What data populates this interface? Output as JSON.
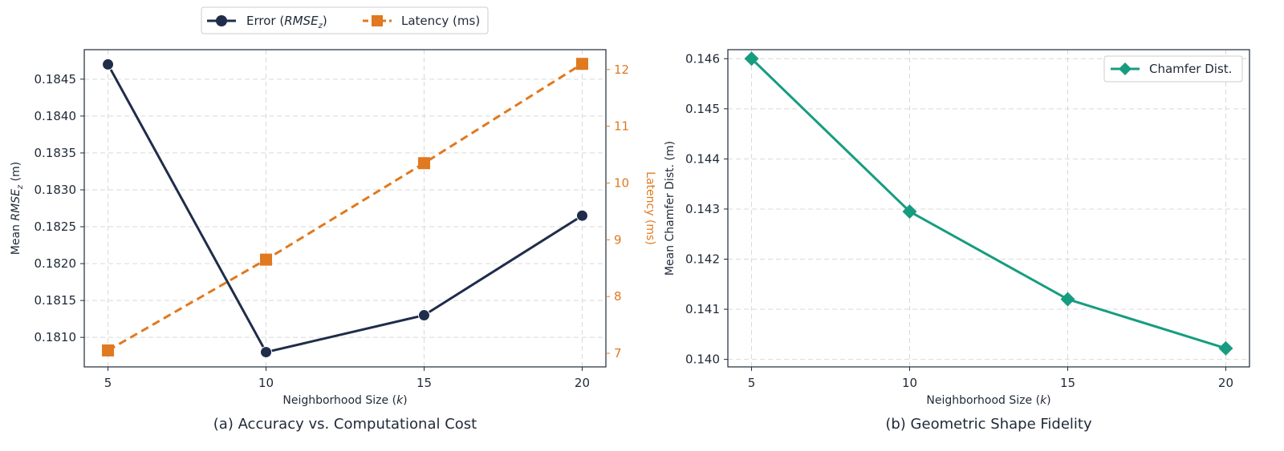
{
  "chart_data": [
    {
      "type": "line",
      "caption": "(a) Accuracy vs. Computational Cost",
      "xlabel": "Neighborhood Size (k)",
      "ylabel": "Mean RMSEz (m)",
      "y2label": "Latency (ms)",
      "x": [
        5,
        10,
        15,
        20
      ],
      "xticks": [
        "5",
        "10",
        "15",
        "20"
      ],
      "ylim": [
        0.1806,
        0.1849
      ],
      "yticks": [
        0.181,
        0.1815,
        0.182,
        0.1825,
        0.183,
        0.1835,
        0.184,
        0.1845
      ],
      "yticklabels": [
        "0.1810",
        "0.1815",
        "0.1820",
        "0.1825",
        "0.1830",
        "0.1835",
        "0.1840",
        "0.1845"
      ],
      "y2lim": [
        6.76,
        12.35
      ],
      "y2ticks": [
        7,
        8,
        9,
        10,
        11,
        12
      ],
      "y2ticklabels": [
        "7",
        "8",
        "9",
        "10",
        "11",
        "12"
      ],
      "series": [
        {
          "name": "Error (RMSEz)",
          "axis": "left",
          "color": "#1f2d4a",
          "marker": "circle",
          "style": "solid",
          "values": [
            0.1847,
            0.1808,
            0.1813,
            0.18265
          ]
        },
        {
          "name": "Latency (ms)",
          "axis": "right",
          "color": "#e0791f",
          "marker": "square",
          "style": "dashed",
          "values": [
            7.05,
            8.65,
            10.35,
            12.1
          ]
        }
      ],
      "legend": {
        "position": "top-center",
        "entries": [
          {
            "label_prefix": "Error (",
            "label_math": "RMSE",
            "label_sub": "z",
            "label_suffix": ")"
          },
          {
            "label": "Latency (ms)"
          }
        ]
      }
    },
    {
      "type": "line",
      "caption": "(b) Geometric Shape Fidelity",
      "xlabel": "Neighborhood Size (k)",
      "ylabel": "Mean Chamfer Dist. (m)",
      "x": [
        5,
        10,
        15,
        20
      ],
      "xticks": [
        "5",
        "10",
        "15",
        "20"
      ],
      "ylim": [
        0.13985,
        0.14618
      ],
      "yticks": [
        0.14,
        0.141,
        0.142,
        0.143,
        0.144,
        0.145,
        0.146
      ],
      "yticklabels": [
        "0.140",
        "0.141",
        "0.142",
        "0.143",
        "0.144",
        "0.145",
        "0.146"
      ],
      "series": [
        {
          "name": "Chamfer Dist.",
          "color": "#179c80",
          "marker": "diamond",
          "style": "solid",
          "values": [
            0.146,
            0.14295,
            0.1412,
            0.14022
          ]
        }
      ],
      "legend": {
        "position": "top-right",
        "entries": [
          {
            "label": "Chamfer Dist."
          }
        ]
      }
    }
  ],
  "colors": {
    "navy": "#1f2d4a",
    "orange": "#e0791f",
    "teal": "#179c80",
    "grid": "#d9d9d9"
  }
}
